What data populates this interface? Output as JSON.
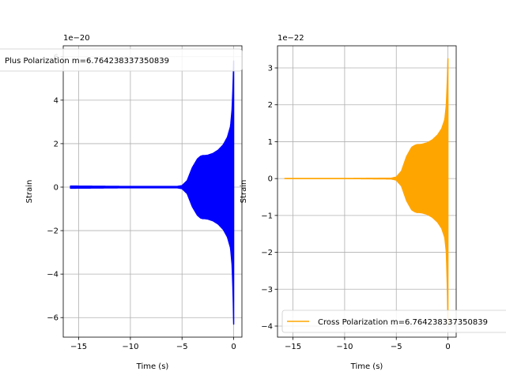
{
  "chart_data": [
    {
      "type": "line",
      "title": "",
      "xlabel": "Time (s)",
      "ylabel": "Strain",
      "y_offset_label": "1e−20",
      "xlim": [
        -16.5,
        0.8
      ],
      "ylim": [
        -6.9,
        6.5
      ],
      "xticks": [
        -15,
        -10,
        -5,
        0
      ],
      "xtick_labels": [
        "−15",
        "−10",
        "−5",
        "0"
      ],
      "yticks": [
        -6,
        -4,
        -2,
        0,
        2,
        4,
        6
      ],
      "ytick_labels": [
        "−6",
        "−4",
        "−2",
        "0",
        "2",
        "4",
        "6"
      ],
      "grid": true,
      "legend_placement": "upper-left",
      "color": "#0000ff",
      "series": [
        {
          "name": "Plus Polarization m=6.764238337350839",
          "envelope": {
            "t": [
              -15.8,
              -10,
              -5.5,
              -5,
              -4.5,
              -4,
              -3.5,
              -3.2,
              -3,
              -2.8,
              -2.5,
              -2,
              -1.5,
              -1,
              -0.6,
              -0.3,
              -0.15,
              -0.05,
              0
            ],
            "upper": [
              0.05,
              0.03,
              0.03,
              0.07,
              0.3,
              0.9,
              1.3,
              1.42,
              1.45,
              1.45,
              1.47,
              1.55,
              1.7,
              1.95,
              2.3,
              2.8,
              3.6,
              4.8,
              5.8
            ],
            "lower": [
              -0.05,
              -0.03,
              -0.03,
              -0.07,
              -0.3,
              -0.9,
              -1.3,
              -1.42,
              -1.45,
              -1.45,
              -1.47,
              -1.55,
              -1.7,
              -1.95,
              -2.3,
              -2.8,
              -3.6,
              -5.0,
              -6.3
            ]
          }
        }
      ]
    },
    {
      "type": "line",
      "title": "",
      "xlabel": "Time (s)",
      "ylabel": "Strain",
      "y_offset_label": "1e−22",
      "xlim": [
        -16.5,
        0.8
      ],
      "ylim": [
        -4.3,
        3.6
      ],
      "xticks": [
        -15,
        -10,
        -5,
        0
      ],
      "xtick_labels": [
        "−15",
        "−10",
        "−5",
        "0"
      ],
      "yticks": [
        -4,
        -3,
        -2,
        -1,
        0,
        1,
        2,
        3
      ],
      "ytick_labels": [
        "−4",
        "−3",
        "−2",
        "−1",
        "0",
        "1",
        "2",
        "3"
      ],
      "grid": true,
      "legend_placement": "lower-left",
      "color": "#ffa500",
      "series": [
        {
          "name": "Cross Polarization m=6.764238337350839",
          "envelope": {
            "t": [
              -15.8,
              -10,
              -5.5,
              -5,
              -4.5,
              -4,
              -3.5,
              -3.2,
              -3,
              -2.8,
              -2.5,
              -2,
              -1.5,
              -1,
              -0.6,
              -0.3,
              -0.15,
              -0.05,
              0
            ],
            "upper": [
              0.0,
              0.0,
              0.01,
              0.04,
              0.2,
              0.6,
              0.85,
              0.9,
              0.92,
              0.92,
              0.93,
              0.97,
              1.05,
              1.18,
              1.35,
              1.6,
              2.0,
              2.7,
              3.25
            ],
            "lower": [
              0.0,
              0.0,
              -0.01,
              -0.04,
              -0.2,
              -0.6,
              -0.85,
              -0.9,
              -0.92,
              -0.92,
              -0.93,
              -0.97,
              -1.05,
              -1.18,
              -1.35,
              -1.6,
              -2.0,
              -3.0,
              -3.95
            ]
          }
        }
      ]
    }
  ]
}
